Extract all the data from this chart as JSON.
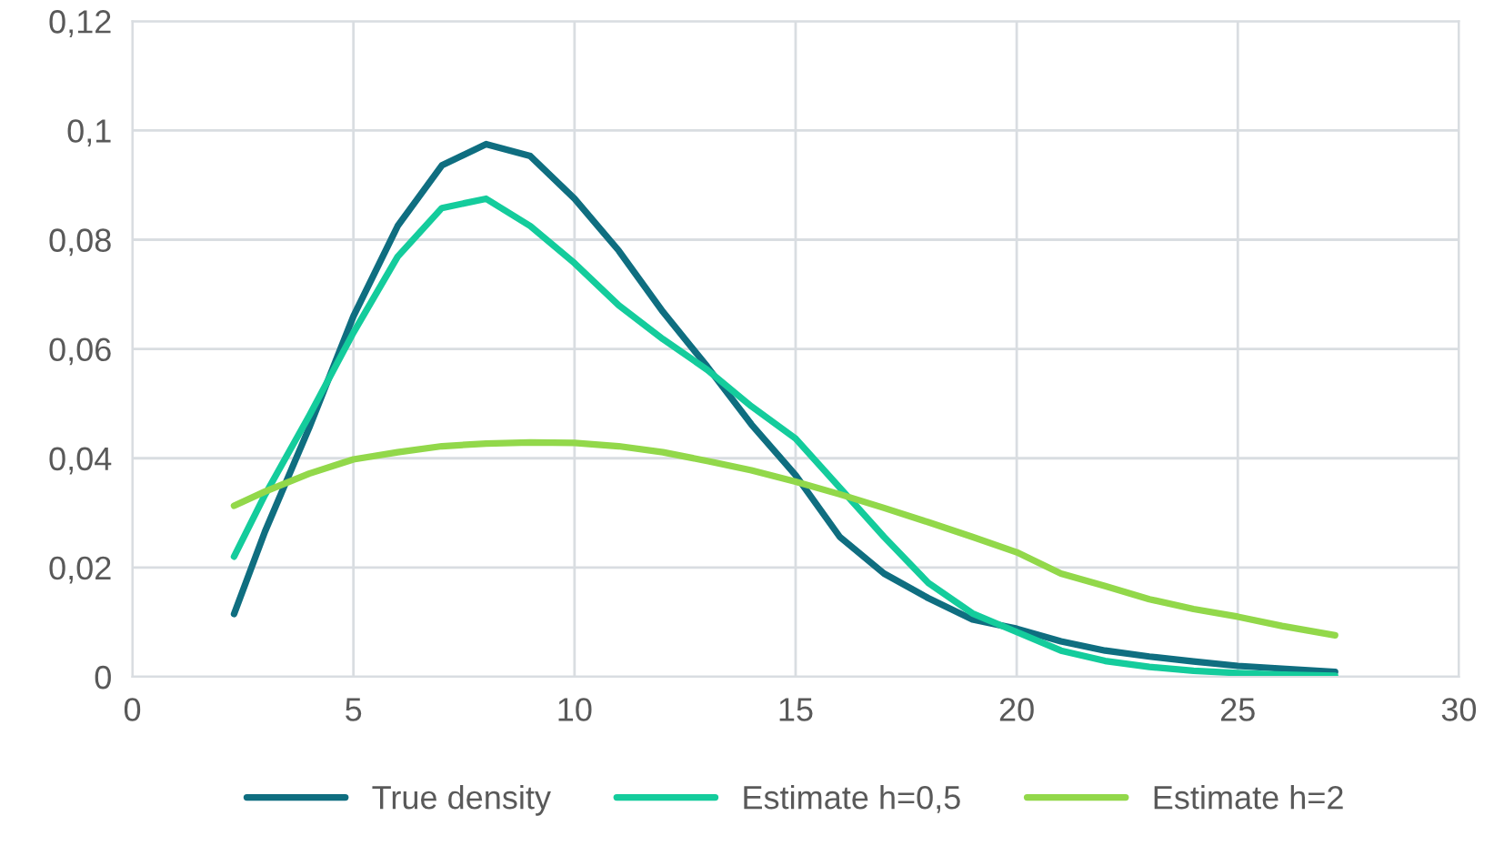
{
  "chart_data": {
    "type": "line",
    "x": [
      2.3,
      3,
      4,
      5,
      6,
      7,
      8,
      9,
      10,
      11,
      12,
      13,
      14,
      15,
      16,
      17,
      18,
      19,
      20,
      21,
      22,
      23,
      24,
      25,
      26,
      27.2
    ],
    "series": [
      {
        "name": "True density",
        "color": "#0f6e80",
        "values": [
          0.0115,
          0.0266,
          0.0456,
          0.066,
          0.0825,
          0.0936,
          0.0975,
          0.0953,
          0.0875,
          0.078,
          0.0668,
          0.0568,
          0.0462,
          0.0369,
          0.0256,
          0.0189,
          0.0144,
          0.0105,
          0.0088,
          0.0065,
          0.0048,
          0.0037,
          0.0028,
          0.002,
          0.0015,
          0.0009
        ]
      },
      {
        "name": "Estimate h=0,5",
        "color": "#14cc9c",
        "values": [
          0.022,
          0.0333,
          0.0478,
          0.063,
          0.0769,
          0.0858,
          0.0875,
          0.0825,
          0.0757,
          0.068,
          0.0618,
          0.0562,
          0.0495,
          0.0436,
          0.0346,
          0.0256,
          0.0172,
          0.0116,
          0.0082,
          0.0048,
          0.0029,
          0.0018,
          0.0011,
          0.0007,
          0.0004,
          0.0002
        ]
      },
      {
        "name": "Estimate h=2",
        "color": "#92d84a",
        "values": [
          0.0313,
          0.0339,
          0.0372,
          0.0398,
          0.0411,
          0.0422,
          0.0427,
          0.0429,
          0.0428,
          0.0422,
          0.0411,
          0.0395,
          0.0378,
          0.0357,
          0.0334,
          0.0309,
          0.0283,
          0.0256,
          0.0228,
          0.0189,
          0.0166,
          0.0142,
          0.0124,
          0.011,
          0.0093,
          0.0076
        ]
      }
    ],
    "xlim": [
      0,
      30
    ],
    "xticks": [
      0,
      5,
      10,
      15,
      20,
      25,
      30
    ],
    "ylim": [
      0,
      0.12
    ],
    "yticks": [
      0,
      {
        "value": 0.02,
        "label": "0,02"
      },
      {
        "value": 0.04,
        "label": "0,04"
      },
      {
        "value": 0.06,
        "label": "0,06"
      },
      {
        "value": 0.08,
        "label": "0,08"
      },
      {
        "value": 0.1,
        "label": "0,1"
      },
      {
        "value": 0.12,
        "label": "0,12"
      }
    ],
    "grid": true,
    "legend": "bottom",
    "marker": "none",
    "line_style": "solid"
  }
}
